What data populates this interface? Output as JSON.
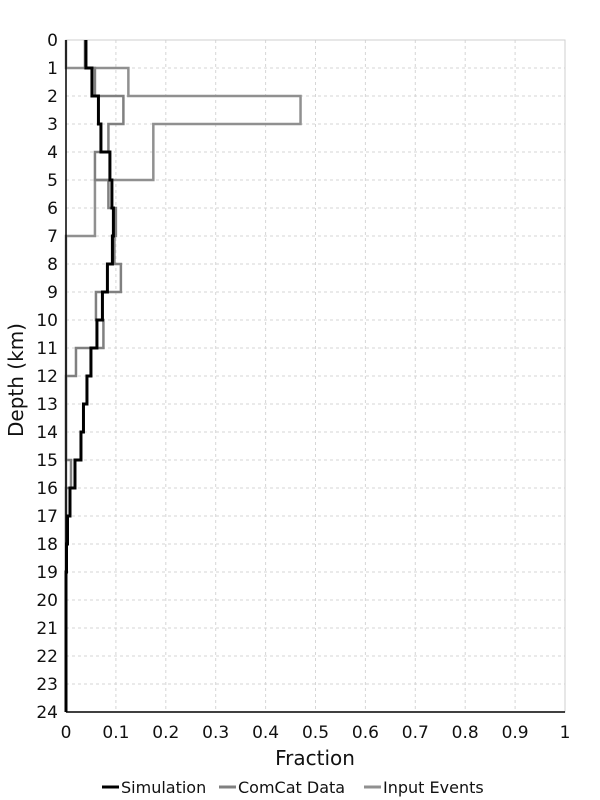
{
  "chart_data": {
    "type": "line",
    "orientation": "depth-profile-step",
    "xlabel": "Fraction",
    "ylabel": "Depth (km)",
    "xlim": [
      0,
      1
    ],
    "ylim": [
      0,
      24
    ],
    "y_inverted": true,
    "x_ticks": [
      "0",
      "0.1",
      "0.2",
      "0.3",
      "0.4",
      "0.5",
      "0.6",
      "0.7",
      "0.8",
      "0.9",
      "1"
    ],
    "y_ticks": [
      "0",
      "1",
      "2",
      "3",
      "4",
      "5",
      "6",
      "7",
      "8",
      "9",
      "10",
      "11",
      "12",
      "13",
      "14",
      "15",
      "16",
      "17",
      "18",
      "19",
      "20",
      "21",
      "22",
      "23",
      "24"
    ],
    "grid": true,
    "legend_position": "bottom",
    "depth_bins": [
      [
        0,
        1
      ],
      [
        1,
        2
      ],
      [
        2,
        3
      ],
      [
        3,
        4
      ],
      [
        4,
        5
      ],
      [
        5,
        6
      ],
      [
        6,
        7
      ],
      [
        7,
        8
      ],
      [
        8,
        9
      ],
      [
        9,
        10
      ],
      [
        10,
        11
      ],
      [
        11,
        12
      ],
      [
        12,
        13
      ],
      [
        13,
        14
      ],
      [
        14,
        15
      ],
      [
        15,
        16
      ],
      [
        16,
        17
      ],
      [
        17,
        18
      ],
      [
        18,
        19
      ],
      [
        19,
        20
      ],
      [
        20,
        21
      ],
      [
        21,
        22
      ],
      [
        22,
        23
      ],
      [
        23,
        24
      ]
    ],
    "series": [
      {
        "name": "Simulation",
        "color": "#000000",
        "values": [
          0.04,
          0.052,
          0.065,
          0.07,
          0.088,
          0.092,
          0.095,
          0.093,
          0.083,
          0.073,
          0.062,
          0.05,
          0.042,
          0.035,
          0.03,
          0.018,
          0.008,
          0.003,
          0.001,
          0,
          0,
          0,
          0,
          0
        ]
      },
      {
        "name": "ComCat Data",
        "color": "#808080",
        "values": [
          0.038,
          0.058,
          0.115,
          0.085,
          0.058,
          0.085,
          0.1,
          0.097,
          0.11,
          0.06,
          0.075,
          0.02,
          0,
          0,
          0,
          0.01,
          0,
          0,
          0,
          0,
          0,
          0,
          0,
          0
        ]
      },
      {
        "name": "Input Events",
        "color": "#909090",
        "values": [
          0,
          0.125,
          0.47,
          0.175,
          0.175,
          0.058,
          0.058,
          0,
          0,
          0,
          0,
          0,
          0,
          0,
          0,
          0,
          0,
          0,
          0,
          0,
          0,
          0,
          0,
          0
        ]
      }
    ]
  }
}
